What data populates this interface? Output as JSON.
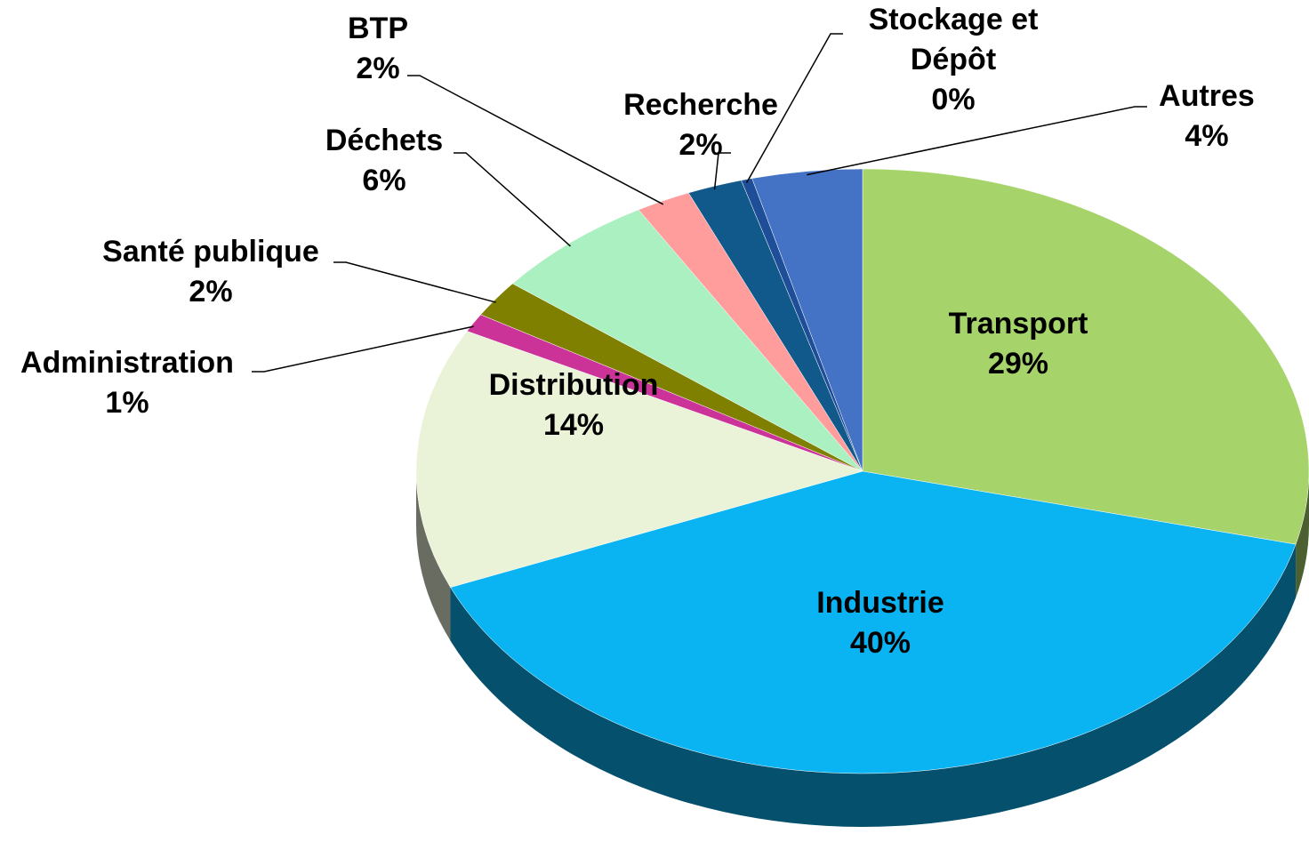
{
  "chart_data": {
    "type": "pie",
    "categories": [
      "Transport",
      "Industrie",
      "Distribution",
      "Administration",
      "Santé publique",
      "Déchets",
      "BTP",
      "Recherche",
      "Stockage et Dépôt",
      "Autres"
    ],
    "values": [
      29,
      40,
      14,
      1,
      2,
      6,
      2,
      2,
      0.4,
      4
    ],
    "value_labels": [
      "29%",
      "40%",
      "14%",
      "1%",
      "2%",
      "6%",
      "2%",
      "2%",
      "0%",
      "4%"
    ],
    "colors": [
      "#a6d46a",
      "#0ab4f2",
      "#eaf3d8",
      "#cc3399",
      "#7f7f00",
      "#aaf0c0",
      "#ff9c9c",
      "#11598a",
      "#1f4e99",
      "#4472c4"
    ]
  }
}
